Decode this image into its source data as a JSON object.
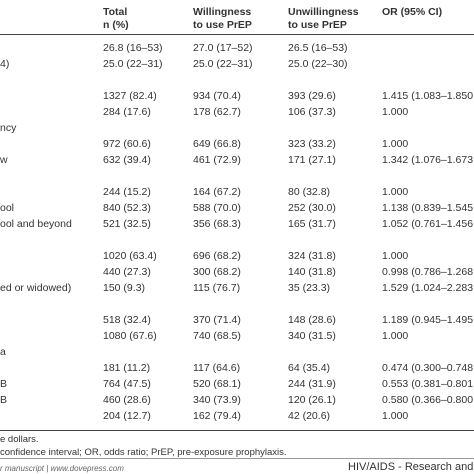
{
  "table": {
    "header": [
      [
        "Total",
        "n (%)"
      ],
      [
        "Willingness",
        "to use PrEP"
      ],
      [
        "Unwillingness",
        "to use PrEP"
      ],
      [
        "OR (95% CI)"
      ]
    ],
    "rows": [
      {
        "cells": [
          "26.8 (16–53)",
          "27.0 (17–52)",
          "26.5 (16–53)"
        ]
      },
      {
        "label": "4)",
        "cells": [
          "25.0 (22–31)",
          "25.0 (22–31)",
          "25.0 (22–30)"
        ]
      },
      {},
      {
        "cells": [
          "1327 (82.4)",
          "934 (70.4)",
          "393 (29.6)",
          "1.415 (1.083–1.850"
        ]
      },
      {
        "cells": [
          "284 (17.6)",
          "178 (62.7)",
          "106 (37.3)",
          "1.000"
        ]
      },
      {
        "label": "ncy"
      },
      {
        "cells": [
          "972 (60.6)",
          "649 (66.8)",
          "323 (33.2)",
          "1.000"
        ]
      },
      {
        "label": "w",
        "cells": [
          "632 (39.4)",
          "461 (72.9)",
          "171 (27.1)",
          "1.342 (1.076–1.673"
        ]
      },
      {},
      {
        "cells": [
          "244 (15.2)",
          "164 (67.2)",
          "80 (32.8)",
          "1.000"
        ]
      },
      {
        "label": "ool",
        "cells": [
          "840 (52.3)",
          "588 (70.0)",
          "252 (30.0)",
          "1.138 (0.839–1.545"
        ]
      },
      {
        "label": "ool and beyond",
        "cells": [
          "521 (32.5)",
          "356 (68.3)",
          "165 (31.7)",
          "1.052 (0.761–1.456"
        ]
      },
      {},
      {
        "cells": [
          "1020 (63.4)",
          "696 (68.2)",
          "324 (31.8)",
          "1.000"
        ]
      },
      {
        "cells": [
          "440 (27.3)",
          "300 (68.2)",
          "140 (31.8)",
          "0.998 (0.786–1.268"
        ]
      },
      {
        "label": "ed or widowed)",
        "cells": [
          "150 (9.3)",
          "115 (76.7)",
          "35 (23.3)",
          "1.529 (1.024–2.283"
        ]
      },
      {},
      {
        "cells": [
          "518 (32.4)",
          "370 (71.4)",
          "148 (28.6)",
          "1.189 (0.945–1.495"
        ]
      },
      {
        "cells": [
          "1080 (67.6)",
          "740 (68.5)",
          "340 (31.5)",
          "1.000"
        ]
      },
      {
        "label": "a"
      },
      {
        "cells": [
          "181 (11.2)",
          "117 (64.6)",
          "64 (35.4)",
          "0.474 (0.300–0.748"
        ]
      },
      {
        "label": "B",
        "cells": [
          "764 (47.5)",
          "520 (68.1)",
          "244 (31.9)",
          "0.553 (0.381–0.801"
        ]
      },
      {
        "label": "B",
        "cells": [
          "460 (28.6)",
          "340 (73.9)",
          "120 (26.1)",
          "0.580 (0.366–0.800"
        ]
      },
      {
        "cells": [
          "204 (12.7)",
          "162 (79.4)",
          "42 (20.6)",
          "1.000"
        ]
      }
    ]
  },
  "notes": [
    "e dollars.",
    "confidence interval; OR, odds ratio; PrEP, pre-exposure prophylaxis."
  ],
  "footer": {
    "left": "r manuscript | www.dovepress.com",
    "right": "HIV/AIDS - Research and Pal"
  }
}
